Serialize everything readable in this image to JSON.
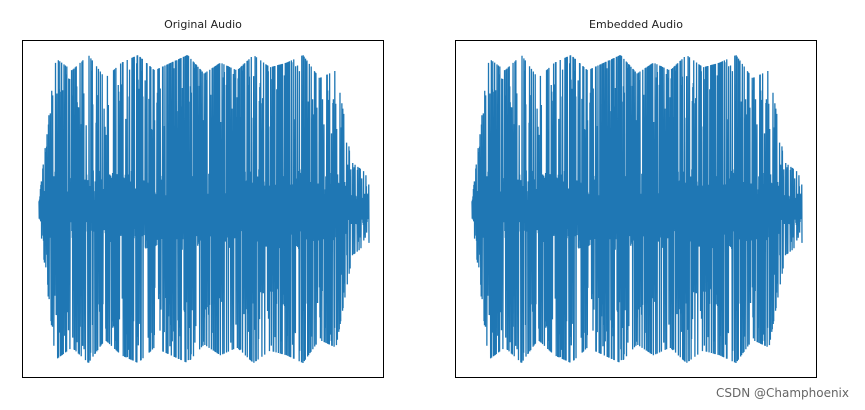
{
  "chart_data": [
    {
      "type": "line",
      "title": "Original Audio",
      "xlabel": "",
      "ylabel": "",
      "ylim": [
        -1,
        1
      ],
      "grid": false,
      "axes_ticks": false,
      "line_color": "#1f77b4",
      "envelope": {
        "x": [
          0,
          0.05,
          0.1,
          0.15,
          0.2,
          0.25,
          0.3,
          0.35,
          0.4,
          0.45,
          0.5,
          0.55,
          0.6,
          0.65,
          0.7,
          0.75,
          0.8,
          0.85,
          0.9,
          0.95,
          1.0
        ],
        "amplitude": [
          0.05,
          0.98,
          0.9,
          1.0,
          0.85,
          0.95,
          1.0,
          0.9,
          0.95,
          1.0,
          0.88,
          0.95,
          0.9,
          1.0,
          0.92,
          0.95,
          1.0,
          0.85,
          0.9,
          0.3,
          0.22
        ]
      }
    },
    {
      "type": "line",
      "title": "Embedded Audio",
      "xlabel": "",
      "ylabel": "",
      "ylim": [
        -1,
        1
      ],
      "grid": false,
      "axes_ticks": false,
      "line_color": "#1f77b4",
      "envelope": {
        "x": [
          0,
          0.05,
          0.1,
          0.15,
          0.2,
          0.25,
          0.3,
          0.35,
          0.4,
          0.45,
          0.5,
          0.55,
          0.6,
          0.65,
          0.7,
          0.75,
          0.8,
          0.85,
          0.9,
          0.95,
          1.0
        ],
        "amplitude": [
          0.05,
          0.98,
          0.9,
          1.0,
          0.85,
          0.95,
          1.0,
          0.9,
          0.95,
          1.0,
          0.88,
          0.95,
          0.9,
          1.0,
          0.92,
          0.95,
          1.0,
          0.85,
          0.9,
          0.3,
          0.22
        ]
      }
    }
  ],
  "watermark": "CSDN @Champhoenix"
}
